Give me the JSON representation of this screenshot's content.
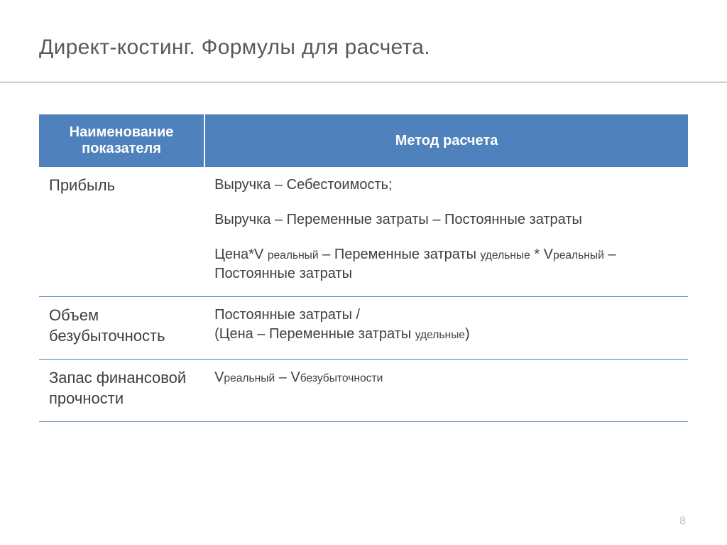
{
  "slide": {
    "title": "Директ-костинг. Формулы для расчета.",
    "page_number": "8"
  },
  "table": {
    "header": {
      "col1": "Наименование показателя",
      "col2": "Метод расчета"
    },
    "rows": [
      {
        "label": "Прибыль",
        "formula": {
          "line1": "Выручка – Себестоимость;",
          "line2": "Выручка – Переменные затраты – Постоянные затраты",
          "line3_part1": "Цена*V ",
          "line3_sub1": "реальный",
          "line3_part2": " – Переменные затраты ",
          "line3_sub2": "удельные",
          "line3_part3": " * V",
          "line3_sub3": "реальный",
          "line3_part4": " – Постоянные затраты"
        }
      },
      {
        "label": "Объем безубыточность",
        "formula": {
          "line1": "Постоянные затраты /",
          "line2_part1": "(Цена – Переменные затраты ",
          "line2_sub1": "удельные",
          "line2_part2": ")"
        }
      },
      {
        "label": "Запас финансовой прочности",
        "formula": {
          "part1": "V",
          "sub1": "реальный",
          "part2": " – V",
          "sub2": "безубыточности"
        }
      }
    ]
  },
  "style": {
    "header_bg": "#4f81bd",
    "header_text_color": "#ffffff",
    "body_text_color": "#404040",
    "title_color": "#595959",
    "border_color": "#4f81bd",
    "divider_color": "#8a8a8a",
    "page_number_color": "#bfbfbf",
    "title_fontsize": 30,
    "header_fontsize": 20,
    "body_fontsize": 20,
    "label_fontsize": 22,
    "col_left_width_pct": 25.5,
    "col_right_width_pct": 74.5
  }
}
